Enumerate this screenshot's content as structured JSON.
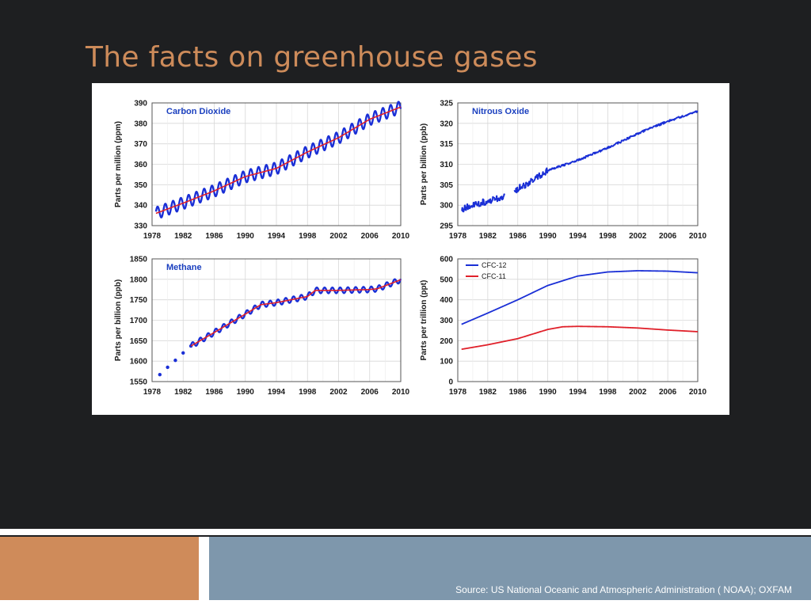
{
  "slide": {
    "title": "The facts on greenhouse gases",
    "source": "Source: US National Oceanic and Atmospheric Administration ( NOAA); OXFAM"
  },
  "colors": {
    "background": "#1e1f21",
    "title": "#cd8b5a",
    "series_blue": "#1a2fd6",
    "series_red": "#e0202a",
    "footer_orange": "#cf8b5a",
    "footer_blue": "#7e97ac"
  },
  "chart_data": [
    {
      "type": "line",
      "title": "Carbon Dioxide",
      "ylabel": "Parts per million (ppm)",
      "xlim": [
        1978,
        2010
      ],
      "ylim": [
        330,
        390
      ],
      "xticks": [
        1978,
        1982,
        1986,
        1990,
        1994,
        1998,
        2002,
        2006,
        2010
      ],
      "yticks": [
        330,
        340,
        350,
        360,
        370,
        380,
        390
      ],
      "grid": true,
      "series": [
        {
          "color": "#1a2fd6",
          "style": "seasonal",
          "x": [
            1978.5,
            1982,
            1986,
            1990,
            1994,
            1998,
            2002,
            2006,
            2010
          ],
          "y": [
            336,
            341,
            347,
            354,
            358,
            366,
            373,
            382,
            388
          ],
          "amplitude": 3
        },
        {
          "color": "#e0202a",
          "style": "trend",
          "x": [
            1978.5,
            1982,
            1986,
            1990,
            1994,
            1998,
            2002,
            2006,
            2010
          ],
          "y": [
            336,
            341,
            347,
            354,
            358,
            366,
            373,
            382,
            388
          ]
        }
      ]
    },
    {
      "type": "line",
      "title": "Nitrous Oxide",
      "ylabel": "Parts per billion (ppb)",
      "xlim": [
        1978,
        2010
      ],
      "ylim": [
        295,
        325
      ],
      "xticks": [
        1978,
        1982,
        1986,
        1990,
        1994,
        1998,
        2002,
        2006,
        2010
      ],
      "yticks": [
        295,
        300,
        305,
        310,
        315,
        320,
        325
      ],
      "grid": true,
      "series": [
        {
          "color": "#1a2fd6",
          "style": "noisy-gap",
          "x": [
            1978.5,
            1980,
            1982,
            1984,
            1986,
            1988,
            1990,
            1994,
            1998,
            2002,
            2006,
            2010
          ],
          "y": [
            299,
            300,
            301,
            302,
            304,
            306,
            308.5,
            311,
            314,
            317.5,
            320.5,
            323
          ],
          "noise": 1,
          "gap": [
            1984.3,
            1985.5
          ]
        }
      ]
    },
    {
      "type": "line",
      "title": "Methane",
      "ylabel": "Parts per billion (ppb)",
      "xlim": [
        1978,
        2010
      ],
      "ylim": [
        1550,
        1850
      ],
      "xticks": [
        1978,
        1982,
        1986,
        1990,
        1994,
        1998,
        2002,
        2006,
        2010
      ],
      "yticks": [
        1550,
        1600,
        1650,
        1700,
        1750,
        1800,
        1850
      ],
      "grid": true,
      "series": [
        {
          "color": "#1a2fd6",
          "style": "dots",
          "x": [
            1979,
            1980,
            1981,
            1982,
            1983
          ],
          "y": [
            1567,
            1585,
            1602,
            1620,
            1637
          ]
        },
        {
          "color": "#1a2fd6",
          "style": "seasonal",
          "x": [
            1983,
            1986,
            1990,
            1992,
            1994,
            1998,
            1999,
            2002,
            2006,
            2007,
            2010
          ],
          "y": [
            1637,
            1670,
            1715,
            1738,
            1743,
            1758,
            1773,
            1773,
            1775,
            1777,
            1799
          ],
          "amplitude": 7
        },
        {
          "color": "#e0202a",
          "style": "trend",
          "x": [
            1983,
            1986,
            1990,
            1992,
            1994,
            1998,
            1999,
            2002,
            2006,
            2007,
            2010
          ],
          "y": [
            1637,
            1670,
            1715,
            1738,
            1743,
            1758,
            1773,
            1773,
            1775,
            1777,
            1799
          ]
        }
      ]
    },
    {
      "type": "line",
      "xlim": [
        1978,
        2010
      ],
      "ylim": [
        0,
        600
      ],
      "ylabel": "Parts per trillion (ppt)",
      "xticks": [
        1978,
        1982,
        1986,
        1990,
        1994,
        1998,
        2002,
        2006,
        2010
      ],
      "yticks": [
        0,
        100,
        200,
        300,
        400,
        500,
        600
      ],
      "grid": true,
      "legend": "top-left",
      "series": [
        {
          "name": "CFC-12",
          "color": "#1a2fd6",
          "style": "smooth",
          "x": [
            1978.5,
            1982,
            1986,
            1990,
            1994,
            1998,
            2002,
            2006,
            2010
          ],
          "y": [
            280,
            335,
            400,
            470,
            516,
            536,
            542,
            540,
            532
          ]
        },
        {
          "name": "CFC-11",
          "color": "#e0202a",
          "style": "smooth",
          "x": [
            1978.5,
            1982,
            1986,
            1990,
            1992,
            1994,
            1998,
            2002,
            2006,
            2010
          ],
          "y": [
            158,
            180,
            210,
            255,
            268,
            270,
            268,
            262,
            252,
            244
          ]
        }
      ]
    }
  ]
}
